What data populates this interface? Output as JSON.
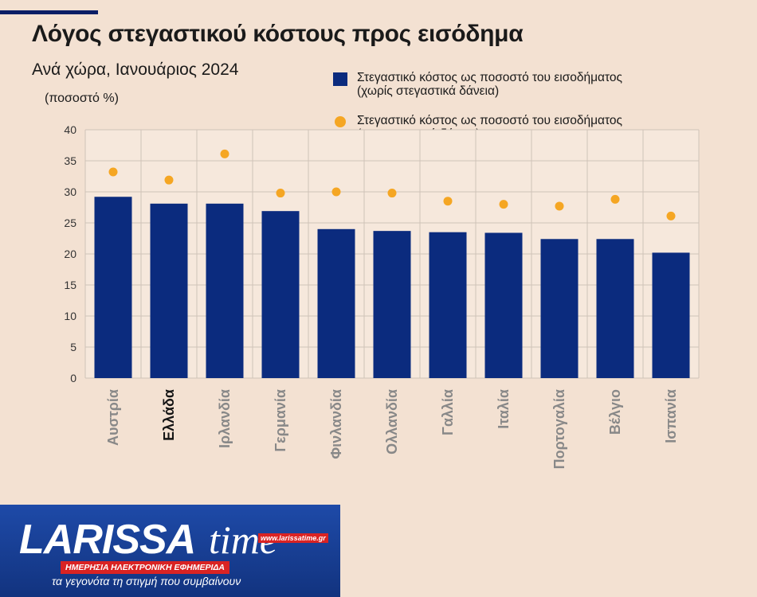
{
  "header": {
    "title": "Λόγος στεγαστικού κόστους προς εισόδημα",
    "subtitle": "Ανά χώρα, Ιανουάριος 2024",
    "unit": "(ποσοστό %)"
  },
  "legend": {
    "bar_line1": "Στεγαστικό κόστος ως ποσοστό του εισοδήματος",
    "bar_line2": "(χωρίς στεγαστικά δάνεια)",
    "dot_line1": "Στεγαστικό κόστος ως ποσοστό του εισοδήματος",
    "dot_line2": "(με στεγαστικά δάνεια)"
  },
  "colors": {
    "bar": "#0b2b7e",
    "dot": "#f5a623",
    "plot_bg": "#f6e8dc",
    "grid": "#cfc3b8",
    "footer": "#163a8f",
    "accent_red": "#d92323"
  },
  "chart_data": {
    "type": "bar",
    "categories": [
      "Αυστρία",
      "Ελλάδα",
      "Ιρλανδία",
      "Γερμανία",
      "Φινλανδία",
      "Ολλανδία",
      "Γαλλία",
      "Ιταλία",
      "Πορτογαλία",
      "Βέλγιο",
      "Ισπανία"
    ],
    "highlight_category": "Ελλάδα",
    "series": [
      {
        "name": "Στεγαστικό κόστος ως ποσοστό του εισοδήματος (χωρίς στεγαστικά δάνεια)",
        "kind": "bar",
        "values": [
          29.2,
          28.1,
          28.1,
          26.9,
          24.0,
          23.7,
          23.5,
          23.4,
          22.4,
          22.4,
          20.2
        ]
      },
      {
        "name": "Στεγαστικό κόστος ως ποσοστό του εισοδήματος (με στεγαστικά δάνεια)",
        "kind": "dot",
        "values": [
          33.2,
          31.9,
          36.1,
          29.8,
          30.0,
          29.8,
          28.5,
          28.0,
          27.7,
          28.8,
          26.1
        ]
      }
    ],
    "ylim": [
      0,
      40
    ],
    "yticks": [
      0,
      5,
      10,
      15,
      20,
      25,
      30,
      35,
      40
    ],
    "grid": true,
    "legend_position": "top-right"
  },
  "footer": {
    "logo_word": "LARISSA",
    "logo_suffix": "time",
    "logo_url": "www.larissatime.gr",
    "logo_band": "ΗΜΕΡΗΣΙΑ ΗΛΕΚΤΡΟΝΙΚΗ ΕΦΗΜΕΡΙΔΑ",
    "tagline": "τα γεγονότα τη στιγμή που συμβαίνουν"
  }
}
